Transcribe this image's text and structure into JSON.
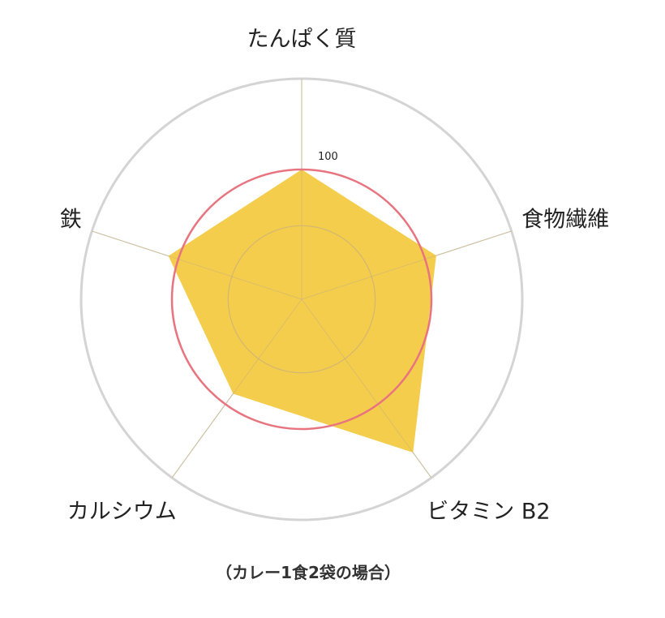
{
  "chart_data": {
    "type": "radar",
    "axes": [
      "たんぱく質",
      "食物繊維",
      "ビタミン B2",
      "カルシウム",
      "鉄"
    ],
    "series": [
      {
        "values": [
          100,
          109,
          146,
          90,
          108
        ]
      }
    ],
    "reference_value": 100,
    "tick_label": "100",
    "rlim": [
      0,
      170
    ],
    "grid": true,
    "colors": {
      "fill": "#f5cd4c",
      "reference_line": "#e8747f",
      "grid": "#d4d4d4",
      "inner_grid": "#c9b27a"
    }
  },
  "caption": "（カレー1食2袋の場合）"
}
